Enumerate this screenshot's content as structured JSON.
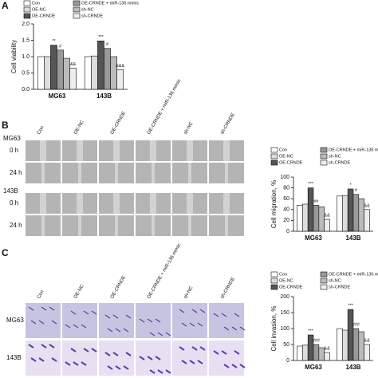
{
  "panels": [
    "A",
    "B",
    "C"
  ],
  "panel_b_images": {
    "groups": [
      {
        "name": "MG63",
        "rows": [
          "0 h",
          "24 h"
        ]
      },
      {
        "name": "143B",
        "rows": [
          "0 h",
          "24 h"
        ]
      }
    ]
  },
  "panel_c_images": {
    "rows": [
      "MG63",
      "143B"
    ]
  },
  "chart_data": [
    {
      "type": "bar",
      "y_label": "Cell viability",
      "categories": [
        "MG63",
        "143B"
      ],
      "ylim": [
        0,
        2
      ],
      "yticks": [
        {
          "value": 0,
          "label": "0.0"
        },
        {
          "value": 0.5,
          "label": "0.5"
        },
        {
          "value": 1,
          "label": "1.0"
        },
        {
          "value": 1.5,
          "label": "1.5"
        },
        {
          "value": 2,
          "label": "2.0"
        }
      ],
      "series": [
        {
          "name": "Con",
          "color": "#ffffff",
          "values": [
            1.0,
            1.0
          ],
          "sig": [
            null,
            null
          ]
        },
        {
          "name": "OE-NC",
          "color": "#dddddd",
          "values": [
            1.0,
            1.02
          ],
          "sig": [
            null,
            null
          ]
        },
        {
          "name": "OE-CRNDE",
          "color": "#555555",
          "values": [
            1.35,
            1.48
          ],
          "sig": [
            "**",
            "***"
          ]
        },
        {
          "name": "OE-CRNDE + miR-136 mimic",
          "color": "#999999",
          "values": [
            1.2,
            1.25
          ],
          "sig": [
            "#",
            "#"
          ]
        },
        {
          "name": "sh-NC",
          "color": "#bbbbbb",
          "values": [
            0.95,
            1.0
          ],
          "sig": [
            null,
            null
          ]
        },
        {
          "name": "sh-CRNDE",
          "color": "#eeeeee",
          "values": [
            0.65,
            0.6
          ],
          "sig": [
            "&&",
            "&&&"
          ]
        }
      ]
    },
    {
      "type": "bar",
      "y_label": "Cell migration, %",
      "categories": [
        "MG63",
        "143B"
      ],
      "ylim": [
        0,
        100
      ],
      "yticks": [
        0,
        20,
        40,
        60,
        80,
        100
      ],
      "series": [
        {
          "name": "Con",
          "color": "#ffffff",
          "values": [
            48,
            65
          ],
          "sig": [
            null,
            null
          ]
        },
        {
          "name": "OE-NC",
          "color": "#dddddd",
          "values": [
            50,
            66
          ],
          "sig": [
            null,
            null
          ]
        },
        {
          "name": "OE-CRNDE",
          "color": "#555555",
          "values": [
            80,
            78
          ],
          "sig": [
            "***",
            "*"
          ]
        },
        {
          "name": "OE-CRNDE + miR-136 mimic",
          "color": "#999999",
          "values": [
            48,
            68
          ],
          "sig": [
            "##",
            "#"
          ]
        },
        {
          "name": "sh-NC",
          "color": "#bbbbbb",
          "values": [
            45,
            60
          ],
          "sig": [
            null,
            null
          ]
        },
        {
          "name": "sh-CRNDE",
          "color": "#eeeeee",
          "values": [
            22,
            40
          ],
          "sig": [
            "&&",
            "&&"
          ]
        }
      ]
    },
    {
      "type": "bar",
      "y_label": "Cell invasion, %",
      "categories": [
        "MG63",
        "143B"
      ],
      "ylim": [
        0,
        200
      ],
      "yticks": [
        0,
        50,
        100,
        150,
        200
      ],
      "series": [
        {
          "name": "Con",
          "color": "#ffffff",
          "values": [
            45,
            100
          ],
          "sig": [
            null,
            null
          ]
        },
        {
          "name": "OE-NC",
          "color": "#dddddd",
          "values": [
            48,
            95
          ],
          "sig": [
            null,
            null
          ]
        },
        {
          "name": "OE-CRNDE",
          "color": "#555555",
          "values": [
            80,
            160
          ],
          "sig": [
            "***",
            "***"
          ]
        },
        {
          "name": "OE-CRNDE + miR-136 mimic",
          "color": "#999999",
          "values": [
            50,
            100
          ],
          "sig": [
            "###",
            "###"
          ]
        },
        {
          "name": "sh-NC",
          "color": "#bbbbbb",
          "values": [
            40,
            90
          ],
          "sig": [
            null,
            null
          ]
        },
        {
          "name": "sh-CRNDE",
          "color": "#eeeeee",
          "values": [
            25,
            50
          ],
          "sig": [
            "&&",
            "&&"
          ]
        }
      ]
    }
  ]
}
